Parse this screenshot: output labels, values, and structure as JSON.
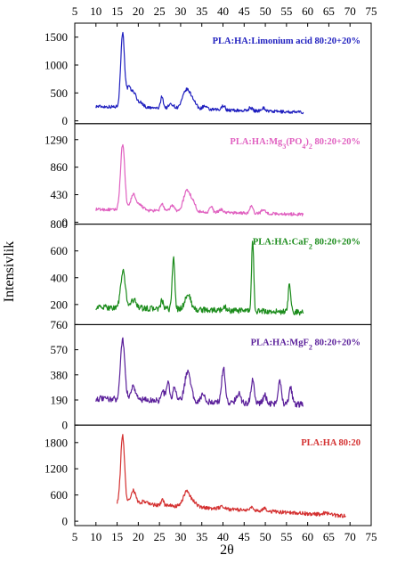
{
  "chart_data": {
    "type": "line",
    "xlabel": "2θ",
    "ylabel": "Intensivlik",
    "xlim": [
      5,
      75
    ],
    "x_ticks": [
      5,
      10,
      15,
      20,
      25,
      30,
      35,
      40,
      45,
      50,
      55,
      60,
      65,
      70,
      75
    ],
    "grid": false,
    "panels": [
      {
        "label": "PLA:HA:Limonium acid 80:20+20%",
        "color": "#1f1fbf",
        "ylim": [
          -50,
          1750
        ],
        "y_ticks": [
          0,
          500,
          1000,
          1500
        ],
        "x_range": [
          10,
          59
        ],
        "baseline": 260,
        "slope": -2.2,
        "peaks": [
          [
            16.3,
            1330,
            0.45
          ],
          [
            17.7,
            320,
            0.5
          ],
          [
            18.9,
            260,
            0.6
          ],
          [
            20.5,
            90,
            0.7
          ],
          [
            25.6,
            220,
            0.3
          ],
          [
            27.8,
            80,
            0.6
          ],
          [
            31.4,
            340,
            0.9
          ],
          [
            33,
            120,
            0.7
          ],
          [
            35.6,
            60,
            0.5
          ],
          [
            40.1,
            90,
            0.35
          ],
          [
            46.5,
            60,
            0.4
          ],
          [
            49.5,
            60,
            0.5
          ]
        ]
      },
      {
        "label": "PLA:HA:Mg3(PO4)2 80:20+20%",
        "label_parts": [
          [
            "PLA:HA:Mg",
            ""
          ],
          [
            "3",
            "sub"
          ],
          [
            "(PO",
            ""
          ],
          [
            "4",
            "sub"
          ],
          [
            ")",
            ""
          ],
          [
            "2",
            "sub"
          ],
          [
            " 80:20+20%",
            ""
          ]
        ],
        "color": "#e060c0",
        "ylim": [
          -30,
          1540
        ],
        "y_ticks": [
          0,
          430,
          860,
          1290
        ],
        "x_range": [
          10,
          59
        ],
        "baseline": 200,
        "slope": -1.6,
        "peaks": [
          [
            16.3,
            1020,
            0.5
          ],
          [
            18.8,
            250,
            0.6
          ],
          [
            20.5,
            80,
            0.7
          ],
          [
            25.6,
            120,
            0.35
          ],
          [
            28,
            90,
            0.5
          ],
          [
            31.5,
            330,
            0.8
          ],
          [
            33,
            120,
            0.6
          ],
          [
            37.2,
            90,
            0.35
          ],
          [
            39.6,
            50,
            0.4
          ],
          [
            46.7,
            110,
            0.35
          ],
          [
            49.5,
            70,
            0.4
          ]
        ]
      },
      {
        "label": "PLA:HA:CaF2 80:20+20%",
        "label_parts": [
          [
            "PLA:HA:CaF",
            ""
          ],
          [
            "2",
            "sub"
          ],
          [
            " 80:20+20%",
            ""
          ]
        ],
        "color": "#1c8c1c",
        "ylim": [
          50,
          800
        ],
        "y_ticks": [
          200,
          400,
          600,
          800
        ],
        "x_range": [
          10,
          59
        ],
        "baseline": 180,
        "slope": -0.8,
        "peaks": [
          [
            16.4,
            270,
            0.55
          ],
          [
            18.9,
            60,
            0.7
          ],
          [
            25.6,
            60,
            0.3
          ],
          [
            28.3,
            390,
            0.3
          ],
          [
            31.7,
            110,
            0.7
          ],
          [
            47,
            540,
            0.25
          ],
          [
            55.7,
            200,
            0.3
          ],
          [
            40.3,
            30,
            0.4
          ]
        ]
      },
      {
        "label": "PLA:HA:MgF2 80:20+20%",
        "label_parts": [
          [
            "PLA:HA:MgF",
            ""
          ],
          [
            "2",
            "sub"
          ],
          [
            " 80:20+20%",
            ""
          ]
        ],
        "color": "#5a1f9a",
        "ylim": [
          0,
          760
        ],
        "y_ticks": [
          0,
          190,
          380,
          570,
          760
        ],
        "x_range": [
          10,
          59
        ],
        "baseline": 200,
        "slope": -0.9,
        "peaks": [
          [
            16.3,
            460,
            0.5
          ],
          [
            18.8,
            100,
            0.6
          ],
          [
            25.8,
            70,
            0.35
          ],
          [
            27,
            150,
            0.35
          ],
          [
            28.6,
            110,
            0.35
          ],
          [
            31.7,
            230,
            0.7
          ],
          [
            35.2,
            50,
            0.5
          ],
          [
            40.1,
            260,
            0.4
          ],
          [
            43.6,
            70,
            0.5
          ],
          [
            47,
            170,
            0.4
          ],
          [
            49.9,
            60,
            0.4
          ],
          [
            53.4,
            190,
            0.35
          ],
          [
            56,
            120,
            0.35
          ]
        ]
      },
      {
        "label": "PLA:HA 80:20",
        "color": "#d43030",
        "ylim": [
          -100,
          2200
        ],
        "y_ticks": [
          0,
          600,
          1200,
          1800
        ],
        "x_range": [
          15,
          69
        ],
        "baseline": 420,
        "slope": -5.5,
        "peaks": [
          [
            16.3,
            1570,
            0.45
          ],
          [
            18.8,
            300,
            0.6
          ],
          [
            21.5,
            70,
            0.8
          ],
          [
            25.7,
            130,
            0.3
          ],
          [
            31.5,
            370,
            0.8
          ],
          [
            33.3,
            100,
            0.6
          ],
          [
            39.8,
            60,
            0.6
          ],
          [
            46.8,
            60,
            0.5
          ],
          [
            49.8,
            60,
            0.6
          ],
          [
            64.3,
            40,
            0.8
          ]
        ]
      }
    ]
  }
}
